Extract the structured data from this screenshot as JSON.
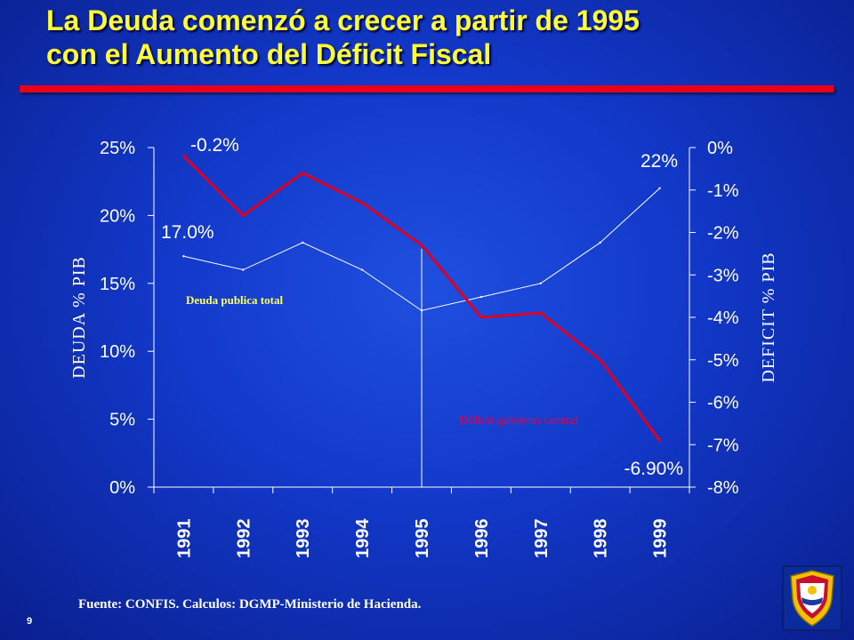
{
  "title": {
    "line1": "La Deuda comenzó a crecer a partir de 1995",
    "line2": "con el Aumento del Déficit Fiscal"
  },
  "footer": {
    "source": "Fuente: CONFIS. Calculos: DGMP-Ministerio de Hacienda.",
    "page_number": "9"
  },
  "colors": {
    "title": "#ffff33",
    "title_rule": "#e8001c",
    "deficit_line": "#dd0022",
    "debt_line": "#ffffff",
    "debt_label": "#ffff66",
    "deficit_label": "#e8004a"
  },
  "chart_data": {
    "type": "line",
    "x": [
      "1991",
      "1992",
      "1993",
      "1994",
      "1995",
      "1996",
      "1997",
      "1998",
      "1999"
    ],
    "y_left": {
      "label": "DEUDA % PIB",
      "ticks": [
        "0%",
        "5%",
        "10%",
        "15%",
        "20%",
        "25%"
      ],
      "range": [
        0,
        25
      ]
    },
    "y_right": {
      "label": "DEFICIT % PIB",
      "ticks": [
        "0%",
        "-1%",
        "-2%",
        "-3%",
        "-4%",
        "-5%",
        "-6%",
        "-7%",
        "-8%"
      ],
      "range": [
        -8,
        0
      ]
    },
    "series": [
      {
        "name": "Deuda publica total",
        "axis": "left",
        "values": [
          17.0,
          16.0,
          18.0,
          16.0,
          13.0,
          14.0,
          15.0,
          18.0,
          22.0
        ]
      },
      {
        "name": "Déficit gobierno central",
        "axis": "right",
        "values": [
          -0.2,
          -1.6,
          -0.6,
          -1.3,
          -2.3,
          -4.0,
          -3.9,
          -5.0,
          -6.9
        ]
      }
    ],
    "annotations": [
      {
        "text": "-0.2%",
        "series": 1,
        "index": 0
      },
      {
        "text": "17.0%",
        "series": 0,
        "index": 0
      },
      {
        "text": "22%",
        "series": 0,
        "index": 8
      },
      {
        "text": "-6.90%",
        "series": 1,
        "index": 8
      }
    ],
    "marker_year": "1995",
    "grid": false
  }
}
